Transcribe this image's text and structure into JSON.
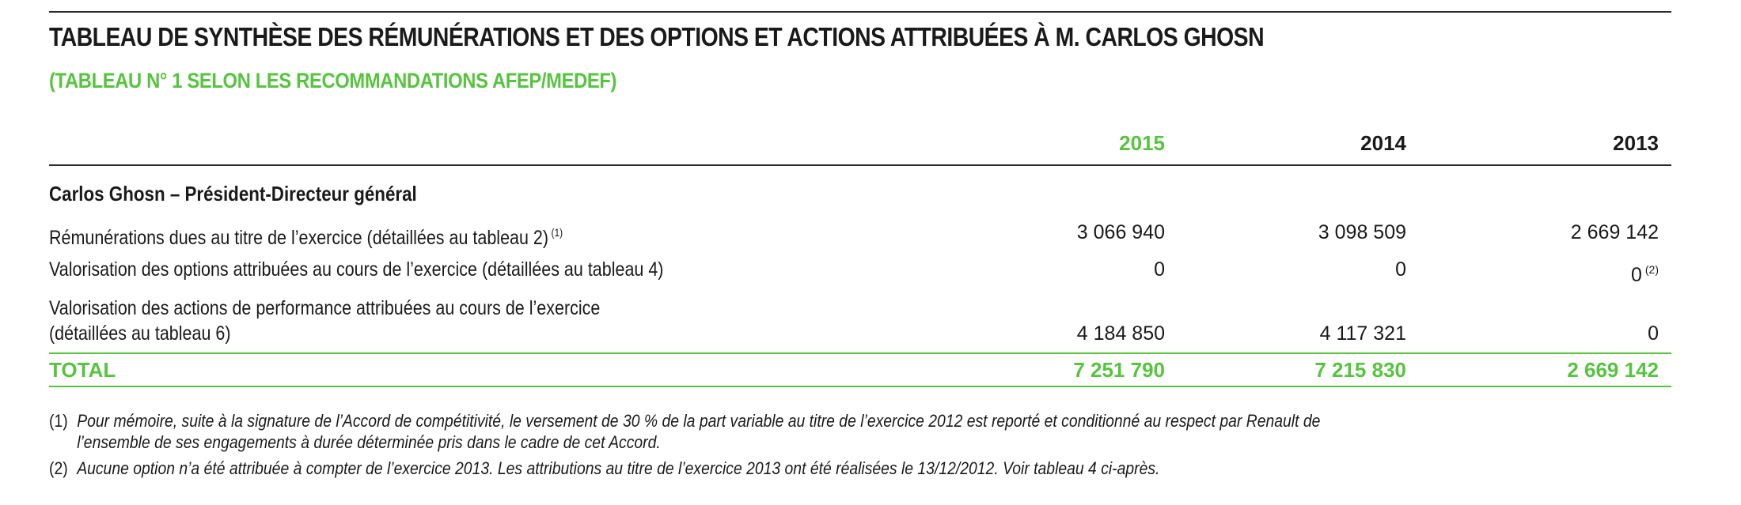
{
  "colors": {
    "accent": "#56c43f",
    "text": "#1a1a1a",
    "rule": "#2b2b2b"
  },
  "title": "TABLEAU DE SYNTHÈSE DES RÉMUNÉRATIONS ET DES OPTIONS ET ACTIONS ATTRIBUÉES À M. CARLOS GHOSN",
  "subtitle": "(TABLEAU N° 1 SELON LES RECOMMANDATIONS AFEP/MEDEF)",
  "table": {
    "years": [
      "2015",
      "2014",
      "2013"
    ],
    "section_label": "Carlos Ghosn – Président-Directeur général",
    "rows": [
      {
        "label": "Rémunérations dues au titre de l’exercice (détaillées au tableau 2)",
        "label_note": "(1)",
        "values": [
          "3 066 940",
          "3 098 509",
          "2 669 142"
        ],
        "value_notes": [
          "",
          "",
          ""
        ]
      },
      {
        "label": "Valorisation des options attribuées au cours de l’exercice (détaillées au tableau 4)",
        "label_note": "",
        "values": [
          "0",
          "0",
          "0"
        ],
        "value_notes": [
          "",
          "",
          "(2)"
        ]
      },
      {
        "label_line1": "Valorisation des actions de performance attribuées au cours de l’exercice",
        "label_line2": "(détaillées au tableau 6)",
        "values": [
          "4 184 850",
          "4 117 321",
          "0"
        ]
      }
    ],
    "total": {
      "label": "TOTAL",
      "values": [
        "7 251 790",
        "7 215 830",
        "2 669 142"
      ]
    }
  },
  "footnotes": [
    {
      "number": "(1)",
      "line1": "Pour mémoire, suite à la signature de l’Accord de compétitivité, le versement de 30 % de la part variable au titre de l’exercice 2012 est reporté et conditionné au respect par Renault de",
      "line2": "l’ensemble de ses engagements à durée déterminée pris dans le cadre de cet Accord."
    },
    {
      "number": "(2)",
      "line1": "Aucune option n’a été attribuée à compter de l’exercice 2013. Les attributions au titre de l’exercice 2013 ont été réalisées le 13/12/2012. Voir tableau 4 ci-après."
    }
  ]
}
